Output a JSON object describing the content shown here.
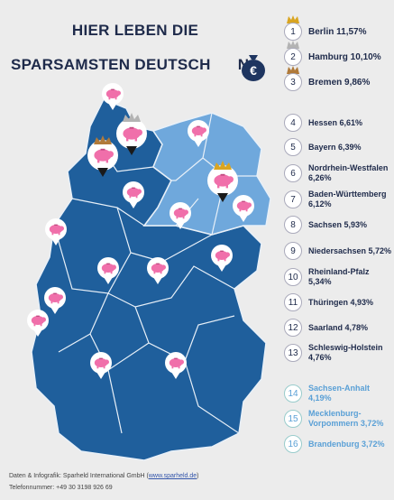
{
  "title": {
    "line1": "HIER LEBEN DIE",
    "line2": "SPARSAMSTEN DEUTSCH",
    "line2_tail": "N"
  },
  "colors": {
    "dark_blue": "#1f5f9c",
    "light_blue": "#6fa8dc",
    "pig_pink": "#f06faa",
    "gold": "#d9a521",
    "silver": "#b3b3b3",
    "bronze": "#b07a3a"
  },
  "ranking": [
    {
      "rank": "1",
      "label": "Berlin 11,57%"
    },
    {
      "rank": "2",
      "label": "Hamburg 10,10%"
    },
    {
      "rank": "3",
      "label": "Bremen 9,86%"
    },
    {
      "rank": "4",
      "label": "Hessen 6,61%"
    },
    {
      "rank": "5",
      "label": "Bayern 6,39%"
    },
    {
      "rank": "6",
      "label": "Nordrhein-Westfalen 6,26%"
    },
    {
      "rank": "7",
      "label": "Baden-Württemberg 6,12%"
    },
    {
      "rank": "8",
      "label": "Sachsen 5,93%"
    },
    {
      "rank": "9",
      "label": "Niedersachsen 5,72%"
    },
    {
      "rank": "10",
      "label": "Rheinland-Pfalz 5,34%"
    },
    {
      "rank": "11",
      "label": "Thüringen 4,93%"
    },
    {
      "rank": "12",
      "label": "Saarland 4,78%"
    },
    {
      "rank": "13",
      "label": "Schleswig-Holstein 4,76%"
    },
    {
      "rank": "14",
      "label": "Sachsen-Anhalt 4,19%"
    },
    {
      "rank": "15",
      "label": "Mecklenburg-Vorpommern 3,72%"
    },
    {
      "rank": "16",
      "label": "Brandenburg 3,72%"
    }
  ],
  "footer": {
    "line1_prefix": "Daten & Infografik: Sparheld International GmbH (",
    "line1_link": "www.sparheld.de",
    "line1_suffix": ")",
    "line2": "Telefonnummer: +49 30 3198 926 69"
  },
  "icons": [
    "crown-icon",
    "piggy-bank-icon",
    "money-bag-euro-icon",
    "map-pin-icon"
  ]
}
